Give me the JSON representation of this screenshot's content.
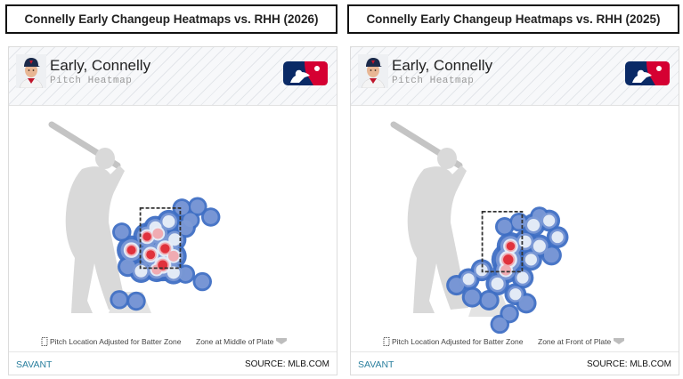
{
  "panels": [
    {
      "title": "Connelly Early Changeup Heatmaps vs. RHH (2026)",
      "player_name": "Early, Connelly",
      "subtitle": "Pitch Heatmap",
      "legend_adjusted": "Pitch Location Adjusted for Batter Zone",
      "legend_zone": "Zone at Middle of Plate",
      "footer_left": "SAVANT",
      "footer_right": "SOURCE: MLB.COM"
    },
    {
      "title": "Connelly Early Changeup Heatmaps vs. RHH (2025)",
      "player_name": "Early, Connelly",
      "subtitle": "Pitch Heatmap",
      "legend_adjusted": "Pitch Location Adjusted for Batter Zone",
      "legend_zone": "Zone at Front of Plate",
      "footer_left": "SAVANT",
      "footer_right": "SOURCE: MLB.COM"
    }
  ],
  "colors": {
    "density_low": "#3f6fc4",
    "density_mid": "#e8eef8",
    "density_high": "#e0323c",
    "silhouette": "#d9d9d9",
    "zone_box": "#333333",
    "savant": "#2a7f9e",
    "mlb_blue": "#0a2a66",
    "mlb_red": "#d50032"
  },
  "chart_data": [
    {
      "type": "heatmap",
      "strike_zone": {
        "x": [
          -0.83,
          0.83
        ],
        "z": [
          1.5,
          3.5
        ]
      },
      "zone_position": "middle of plate",
      "points": [
        {
          "x": -0.55,
          "z": 2.55,
          "w": 0.9
        },
        {
          "x": -0.1,
          "z": 2.65,
          "w": 0.8
        },
        {
          "x": -0.2,
          "z": 2.85,
          "w": 0.6
        },
        {
          "x": 0.35,
          "z": 3.05,
          "w": 0.6
        },
        {
          "x": 0.6,
          "z": 2.45,
          "w": 0.6
        },
        {
          "x": -1.2,
          "z": 2.1,
          "w": 1.0
        },
        {
          "x": -0.4,
          "z": 1.95,
          "w": 1.0
        },
        {
          "x": 0.1,
          "z": 1.6,
          "w": 1.2
        },
        {
          "x": 0.2,
          "z": 2.15,
          "w": 1.1
        },
        {
          "x": 0.55,
          "z": 1.9,
          "w": 0.8
        },
        {
          "x": -0.8,
          "z": 1.4,
          "w": 0.6
        },
        {
          "x": -0.15,
          "z": 1.45,
          "w": 0.7
        },
        {
          "x": 0.55,
          "z": 1.35,
          "w": 0.6
        },
        {
          "x": -1.35,
          "z": 1.55,
          "w": 0.4
        },
        {
          "x": 1.05,
          "z": 2.85,
          "w": 0.4
        },
        {
          "x": 1.25,
          "z": 3.1,
          "w": 0.3
        },
        {
          "x": 1.55,
          "z": 3.55,
          "w": 0.3
        },
        {
          "x": 2.1,
          "z": 3.2,
          "w": 0.3
        },
        {
          "x": 1.05,
          "z": 1.3,
          "w": 0.3
        },
        {
          "x": 1.75,
          "z": 1.05,
          "w": 0.3
        },
        {
          "x": -1.7,
          "z": 0.45,
          "w": 0.3
        },
        {
          "x": -1.0,
          "z": 0.4,
          "w": 0.3
        },
        {
          "x": -1.6,
          "z": 2.7,
          "w": 0.3
        },
        {
          "x": 0.9,
          "z": 3.5,
          "w": 0.3
        }
      ]
    },
    {
      "type": "heatmap",
      "strike_zone": {
        "x": [
          -0.83,
          0.83
        ],
        "z": [
          1.5,
          3.5
        ]
      },
      "zone_position": "front of plate",
      "points": [
        {
          "x": 0.25,
          "z": 1.9,
          "w": 1.3
        },
        {
          "x": 0.35,
          "z": 2.35,
          "w": 0.9
        },
        {
          "x": 0.15,
          "z": 1.55,
          "w": 0.8
        },
        {
          "x": -0.2,
          "z": 1.1,
          "w": 0.6
        },
        {
          "x": 0.95,
          "z": 2.5,
          "w": 0.6
        },
        {
          "x": 1.3,
          "z": 3.05,
          "w": 0.6
        },
        {
          "x": 1.95,
          "z": 3.2,
          "w": 0.5
        },
        {
          "x": 2.3,
          "z": 2.65,
          "w": 0.5
        },
        {
          "x": 2.05,
          "z": 2.05,
          "w": 0.4
        },
        {
          "x": 1.55,
          "z": 2.35,
          "w": 0.6
        },
        {
          "x": 1.2,
          "z": 1.9,
          "w": 0.5
        },
        {
          "x": 0.85,
          "z": 1.3,
          "w": 0.5
        },
        {
          "x": 0.55,
          "z": 0.75,
          "w": 0.5
        },
        {
          "x": 1.0,
          "z": 0.45,
          "w": 0.4
        },
        {
          "x": -0.85,
          "z": 1.55,
          "w": 0.5
        },
        {
          "x": -1.4,
          "z": 1.25,
          "w": 0.5
        },
        {
          "x": -1.9,
          "z": 1.05,
          "w": 0.4
        },
        {
          "x": -1.25,
          "z": 0.65,
          "w": 0.4
        },
        {
          "x": -0.55,
          "z": 0.55,
          "w": 0.4
        },
        {
          "x": 0.3,
          "z": 0.1,
          "w": 0.3
        },
        {
          "x": -0.1,
          "z": -0.25,
          "w": 0.3
        },
        {
          "x": 0.1,
          "z": 3.0,
          "w": 0.3
        },
        {
          "x": 0.7,
          "z": 3.15,
          "w": 0.3
        },
        {
          "x": 1.55,
          "z": 3.35,
          "w": 0.3
        }
      ]
    }
  ]
}
